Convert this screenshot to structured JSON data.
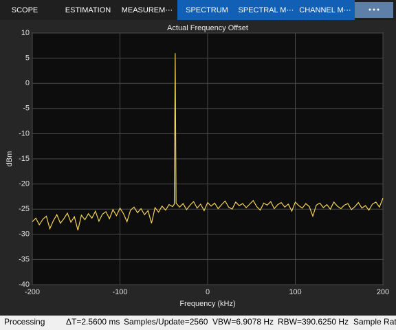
{
  "toolstrip": {
    "tabs": [
      "SCOPE",
      "ESTIMATION",
      "MEASUREM⋯",
      "SPECTRUM",
      "SPECTRAL M⋯",
      "CHANNEL M⋯"
    ]
  },
  "chart_data": {
    "type": "line",
    "title": "Actual Frequency Offset",
    "x_label": "Frequency (kHz)",
    "y_label": "dBm",
    "x": [
      -200,
      -196,
      -192,
      -188,
      -184,
      -180,
      -176,
      -172,
      -168,
      -164,
      -160,
      -156,
      -152,
      -148,
      -144,
      -140,
      -136,
      -132,
      -128,
      -124,
      -120,
      -116,
      -112,
      -108,
      -104,
      -100,
      -96,
      -92,
      -88,
      -84,
      -80,
      -76,
      -72,
      -68,
      -64,
      -60,
      -56,
      -52,
      -48,
      -44,
      -40,
      -38,
      -37,
      -36,
      -32,
      -28,
      -24,
      -20,
      -16,
      -12,
      -8,
      -4,
      0,
      4,
      8,
      12,
      16,
      20,
      24,
      28,
      32,
      36,
      40,
      44,
      48,
      52,
      56,
      60,
      64,
      68,
      72,
      76,
      80,
      84,
      88,
      92,
      96,
      100,
      104,
      108,
      112,
      116,
      120,
      124,
      128,
      132,
      136,
      140,
      144,
      148,
      152,
      156,
      160,
      164,
      168,
      172,
      176,
      180,
      184,
      188,
      192,
      196,
      200
    ],
    "series": [
      {
        "color": "#f5d45a",
        "values": [
          -27.5,
          -26.8,
          -28.1,
          -27.0,
          -26.4,
          -28.9,
          -27.3,
          -26.1,
          -27.8,
          -26.9,
          -25.8,
          -27.6,
          -26.5,
          -29.2,
          -26.2,
          -27.1,
          -25.9,
          -26.8,
          -25.4,
          -27.4,
          -26.0,
          -25.5,
          -26.9,
          -25.1,
          -26.3,
          -24.8,
          -25.9,
          -27.5,
          -25.2,
          -24.6,
          -25.7,
          -24.9,
          -26.1,
          -25.3,
          -27.8,
          -24.7,
          -25.6,
          -24.4,
          -25.2,
          -24.1,
          -24.5,
          -24.0,
          6.0,
          -23.8,
          -24.6,
          -23.9,
          -25.1,
          -24.2,
          -23.5,
          -24.8,
          -24.0,
          -25.3,
          -23.7,
          -24.4,
          -23.8,
          -24.9,
          -24.1,
          -23.4,
          -24.6,
          -25.0,
          -23.6,
          -24.3,
          -23.9,
          -24.7,
          -24.0,
          -23.3,
          -24.5,
          -25.2,
          -23.8,
          -24.2,
          -23.5,
          -24.9,
          -24.1,
          -23.7,
          -24.6,
          -24.0,
          -25.4,
          -23.6,
          -24.3,
          -24.8,
          -23.9,
          -24.5,
          -26.4,
          -24.2,
          -23.8,
          -24.7,
          -24.1,
          -25.0,
          -23.6,
          -24.4,
          -24.9,
          -24.2,
          -23.9,
          -25.1,
          -24.5,
          -23.7,
          -24.8,
          -24.3,
          -25.2,
          -24.0,
          -23.6,
          -24.6,
          -22.8
        ]
      }
    ],
    "xlim": [
      -200,
      200
    ],
    "xticks": [
      -200,
      -100,
      0,
      100,
      200
    ],
    "ylim": [
      -40,
      10
    ],
    "yticks": [
      10,
      5,
      0,
      -5,
      -10,
      -15,
      -20,
      -25,
      -30,
      -35,
      -40
    ],
    "grid": true
  },
  "status_bar": {
    "state": "Processing",
    "fields": [
      "ΔT=2.5600 ms",
      "Samples/Update=2560",
      "VBW=6.9078 Hz",
      "RBW=390.6250 Hz",
      "Sample Rat"
    ]
  }
}
